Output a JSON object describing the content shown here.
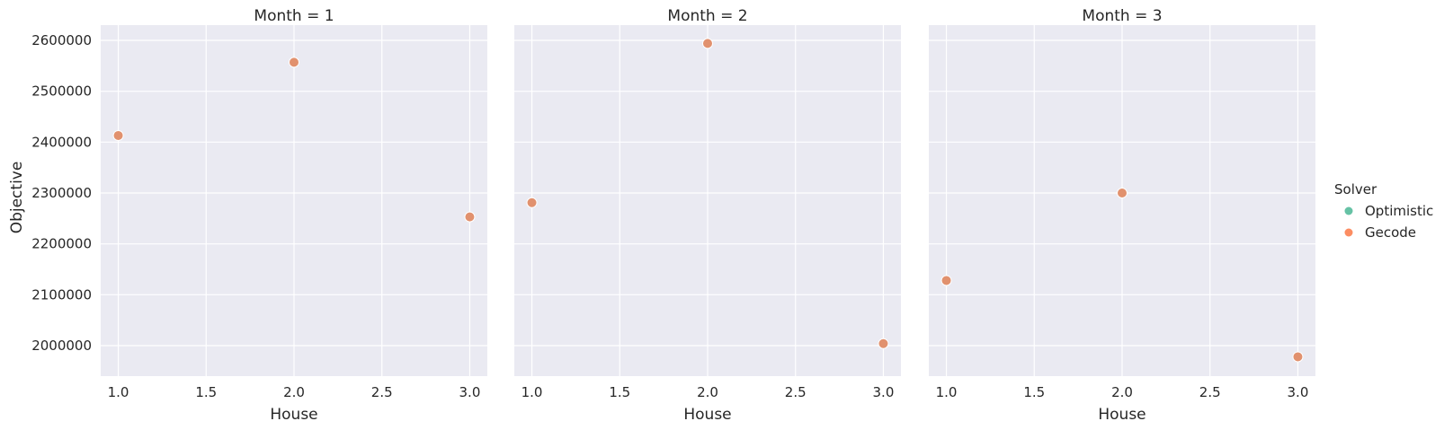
{
  "chart_data": {
    "type": "scatter",
    "facet_variable": "Month",
    "ylabel": "Objective",
    "ylim": [
      1940000,
      2630000
    ],
    "yticks": [
      "2000000",
      "2100000",
      "2200000",
      "2300000",
      "2400000",
      "2500000",
      "2600000"
    ],
    "ytick_values": [
      2000000,
      2100000,
      2200000,
      2300000,
      2400000,
      2500000,
      2600000
    ],
    "xlim": [
      0.9,
      3.1
    ],
    "xticks": [
      "1.0",
      "1.5",
      "2.0",
      "2.5",
      "3.0"
    ],
    "xtick_values": [
      1.0,
      1.5,
      2.0,
      2.5,
      3.0
    ],
    "grid": true,
    "legend": {
      "title": "Solver",
      "placement": "right",
      "entries": [
        {
          "name": "Optimistic",
          "color": "#66c2a5"
        },
        {
          "name": "Gecode",
          "color": "#fc8d62"
        }
      ]
    },
    "marker_color": "#e1916e",
    "panels": [
      {
        "title": "Month = 1",
        "xlabel": "House",
        "points": [
          {
            "x": 1.0,
            "y": 2413000
          },
          {
            "x": 2.0,
            "y": 2557000
          },
          {
            "x": 3.0,
            "y": 2253000
          }
        ]
      },
      {
        "title": "Month = 2",
        "xlabel": "House",
        "points": [
          {
            "x": 1.0,
            "y": 2281000
          },
          {
            "x": 2.0,
            "y": 2594000
          },
          {
            "x": 3.0,
            "y": 2004000
          }
        ]
      },
      {
        "title": "Month = 3",
        "xlabel": "House",
        "points": [
          {
            "x": 1.0,
            "y": 2128000
          },
          {
            "x": 2.0,
            "y": 2300000
          },
          {
            "x": 3.0,
            "y": 1978000
          }
        ]
      }
    ]
  }
}
